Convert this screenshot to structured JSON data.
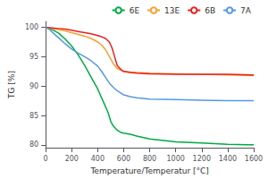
{
  "chart_data": {
    "type": "line",
    "xlabel": "Temperature/Temperatur [°C]",
    "ylabel": "TG [%]",
    "xlim": [
      0,
      1600
    ],
    "ylim": [
      79.5,
      101
    ],
    "xticks": [
      0,
      200,
      400,
      600,
      800,
      1000,
      1200,
      1400,
      1600
    ],
    "yticks": [
      80,
      85,
      90,
      95,
      100
    ],
    "grid": false,
    "legend": "upper right",
    "series": [
      {
        "name": "6E",
        "color": "#00aa44",
        "x": [
          0,
          30,
          60,
          100,
          150,
          200,
          250,
          300,
          350,
          400,
          450,
          480,
          500,
          520,
          550,
          580,
          600,
          650,
          700,
          800,
          1000,
          1200,
          1400,
          1550,
          1600
        ],
        "values": [
          100,
          99.8,
          99.5,
          99.0,
          98.0,
          96.8,
          95.3,
          93.5,
          91.5,
          89.5,
          87.0,
          85.5,
          84.0,
          83.2,
          82.5,
          82.1,
          82.0,
          81.8,
          81.5,
          81.0,
          80.5,
          80.3,
          80.1,
          80.0,
          80.0
        ]
      },
      {
        "name": "13E",
        "color": "#f5a030",
        "x": [
          0,
          50,
          100,
          150,
          200,
          250,
          300,
          350,
          400,
          430,
          460,
          490,
          520,
          550,
          580,
          600,
          650,
          700,
          800,
          1000,
          1200,
          1400,
          1600
        ],
        "values": [
          100,
          99.8,
          99.6,
          99.4,
          99.1,
          98.8,
          98.5,
          98.1,
          97.5,
          97.0,
          96.2,
          95.0,
          93.8,
          93.0,
          92.7,
          92.5,
          92.4,
          92.3,
          92.2,
          92.1,
          92.0,
          91.9,
          91.8
        ]
      },
      {
        "name": "6B",
        "color": "#e82020",
        "x": [
          0,
          50,
          100,
          150,
          200,
          250,
          300,
          350,
          400,
          430,
          460,
          490,
          510,
          530,
          550,
          580,
          600,
          650,
          700,
          800,
          1000,
          1200,
          1400,
          1600
        ],
        "values": [
          100,
          99.9,
          99.8,
          99.7,
          99.5,
          99.3,
          99.1,
          98.9,
          98.6,
          98.4,
          98.1,
          97.5,
          96.5,
          95.0,
          93.5,
          92.8,
          92.5,
          92.3,
          92.2,
          92.1,
          92.0,
          92.0,
          92.0,
          91.9
        ]
      },
      {
        "name": "7A",
        "color": "#5599dd",
        "x": [
          0,
          30,
          60,
          100,
          150,
          200,
          250,
          300,
          350,
          400,
          430,
          460,
          490,
          520,
          550,
          580,
          600,
          650,
          700,
          800,
          1000,
          1200,
          1400,
          1600
        ],
        "values": [
          100,
          99.6,
          99.0,
          98.2,
          97.2,
          96.3,
          95.6,
          95.0,
          94.3,
          93.4,
          92.5,
          91.5,
          90.5,
          89.8,
          89.2,
          88.8,
          88.5,
          88.2,
          88.0,
          87.8,
          87.7,
          87.6,
          87.5,
          87.5
        ]
      }
    ]
  }
}
